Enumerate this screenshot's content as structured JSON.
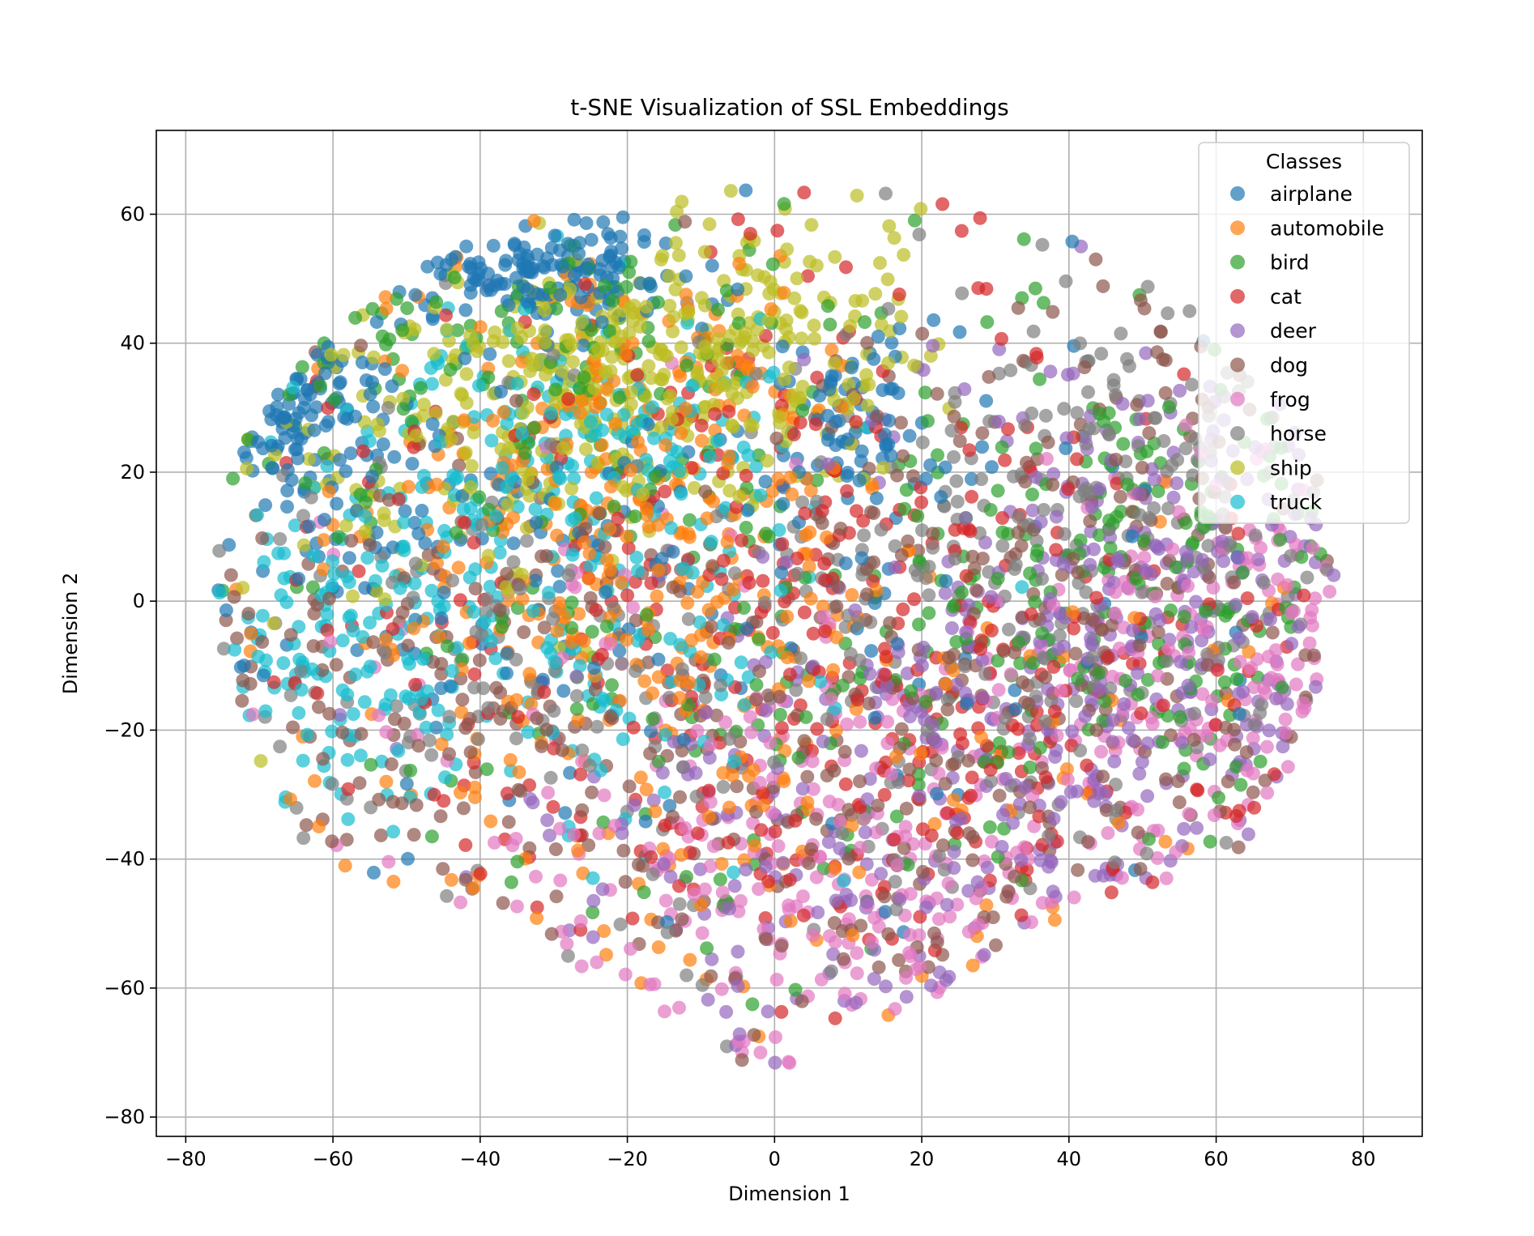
{
  "chart_data": {
    "type": "scatter",
    "title": "t-SNE Visualization of SSL Embeddings",
    "xlabel": "Dimension 1",
    "ylabel": "Dimension 2",
    "xlim": [
      -84,
      88
    ],
    "ylim": [
      -83,
      73
    ],
    "xticks": [
      -80,
      -60,
      -40,
      -20,
      0,
      20,
      40,
      60,
      80
    ],
    "yticks": [
      -80,
      -60,
      -40,
      -20,
      0,
      20,
      40,
      60
    ],
    "grid": true,
    "legend": {
      "title": "Classes",
      "placement": "top-right"
    },
    "series": [
      {
        "name": "airplane",
        "color": "#1f77b4",
        "clusters": [
          {
            "center": [
              -30,
              52
            ],
            "spread": [
              9,
              5
            ],
            "count": 150
          },
          {
            "center": [
              -65,
              30
            ],
            "spread": [
              5,
              6
            ],
            "count": 80
          },
          {
            "center": [
              10,
              28
            ],
            "spread": [
              6,
              8
            ],
            "count": 80
          },
          {
            "center": [
              -50,
              15
            ],
            "spread": [
              25,
              20
            ],
            "count": 120
          },
          {
            "center": [
              0,
              0
            ],
            "spread": [
              45,
              30
            ],
            "count": 80
          }
        ]
      },
      {
        "name": "automobile",
        "color": "#ff7f0e",
        "clusters": [
          {
            "center": [
              -30,
              10
            ],
            "spread": [
              20,
              25
            ],
            "count": 200
          },
          {
            "center": [
              -10,
              20
            ],
            "spread": [
              15,
              20
            ],
            "count": 120
          },
          {
            "center": [
              0,
              -30
            ],
            "spread": [
              40,
              25
            ],
            "count": 130
          }
        ]
      },
      {
        "name": "bird",
        "color": "#2ca02c",
        "clusters": [
          {
            "center": [
              0,
              0
            ],
            "spread": [
              45,
              35
            ],
            "count": 260
          },
          {
            "center": [
              50,
              5
            ],
            "spread": [
              15,
              15
            ],
            "count": 130
          },
          {
            "center": [
              -40,
              40
            ],
            "spread": [
              20,
              10
            ],
            "count": 80
          }
        ]
      },
      {
        "name": "cat",
        "color": "#d62728",
        "clusters": [
          {
            "center": [
              20,
              -20
            ],
            "spread": [
              35,
              30
            ],
            "count": 280
          },
          {
            "center": [
              -20,
              10
            ],
            "spread": [
              40,
              30
            ],
            "count": 150
          }
        ]
      },
      {
        "name": "deer",
        "color": "#9467bd",
        "clusters": [
          {
            "center": [
              45,
              -10
            ],
            "spread": [
              20,
              20
            ],
            "count": 230
          },
          {
            "center": [
              15,
              -40
            ],
            "spread": [
              25,
              18
            ],
            "count": 170
          },
          {
            "center": [
              55,
              10
            ],
            "spread": [
              15,
              15
            ],
            "count": 80
          }
        ]
      },
      {
        "name": "dog",
        "color": "#8c564b",
        "clusters": [
          {
            "center": [
              20,
              -30
            ],
            "spread": [
              35,
              25
            ],
            "count": 260
          },
          {
            "center": [
              -50,
              -10
            ],
            "spread": [
              20,
              20
            ],
            "count": 140
          },
          {
            "center": [
              45,
              20
            ],
            "spread": [
              20,
              20
            ],
            "count": 110
          }
        ]
      },
      {
        "name": "frog",
        "color": "#e377c2",
        "clusters": [
          {
            "center": [
              15,
              -45
            ],
            "spread": [
              25,
              20
            ],
            "count": 220
          },
          {
            "center": [
              60,
              -10
            ],
            "spread": [
              12,
              15
            ],
            "count": 140
          },
          {
            "center": [
              -20,
              -20
            ],
            "spread": [
              30,
              25
            ],
            "count": 80
          }
        ]
      },
      {
        "name": "horse",
        "color": "#7f7f7f",
        "clusters": [
          {
            "center": [
              20,
              -10
            ],
            "spread": [
              35,
              30
            ],
            "count": 200
          },
          {
            "center": [
              50,
              20
            ],
            "spread": [
              20,
              20
            ],
            "count": 140
          },
          {
            "center": [
              -50,
              -10
            ],
            "spread": [
              20,
              20
            ],
            "count": 80
          }
        ]
      },
      {
        "name": "ship",
        "color": "#bcbd22",
        "clusters": [
          {
            "center": [
              -20,
              35
            ],
            "spread": [
              15,
              12
            ],
            "count": 240
          },
          {
            "center": [
              -5,
              40
            ],
            "spread": [
              15,
              10
            ],
            "count": 120
          },
          {
            "center": [
              -40,
              25
            ],
            "spread": [
              20,
              15
            ],
            "count": 100
          }
        ]
      },
      {
        "name": "truck",
        "color": "#17becf",
        "clusters": [
          {
            "center": [
              -30,
              5
            ],
            "spread": [
              20,
              20
            ],
            "count": 200
          },
          {
            "center": [
              -60,
              -10
            ],
            "spread": [
              10,
              12
            ],
            "count": 110
          },
          {
            "center": [
              -25,
              25
            ],
            "spread": [
              12,
              10
            ],
            "count": 100
          }
        ]
      }
    ]
  }
}
